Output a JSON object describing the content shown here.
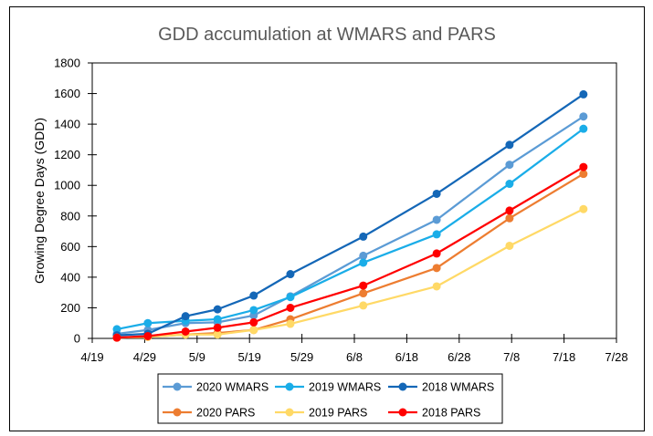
{
  "chart_data": {
    "type": "line",
    "title": "GDD accumulation at WMARS and PARS",
    "xlabel": "",
    "ylabel": "Growing Degree Days (GDD)",
    "ylim": [
      0,
      1800
    ],
    "y_ticks": [
      0,
      200,
      400,
      600,
      800,
      1000,
      1200,
      1400,
      1600,
      1800
    ],
    "x_tick_labels": [
      "4/19",
      "4/29",
      "5/9",
      "5/19",
      "5/29",
      "6/8",
      "6/18",
      "6/28",
      "7/8",
      "7/18",
      "7/28"
    ],
    "x_range_days": [
      0,
      100
    ],
    "x_origin_label": "4/19",
    "x_days": [
      4.7,
      10.6,
      17.8,
      23.9,
      30.8,
      37.8,
      51.7,
      65.7,
      79.6,
      93.7
    ],
    "grid": false,
    "legend_position": "bottom",
    "series": [
      {
        "name": "2020 WMARS",
        "color": "#5B9BD5",
        "values": [
          30,
          55,
          100,
          105,
          150,
          275,
          540,
          775,
          1135,
          1450
        ]
      },
      {
        "name": "2019 WMARS",
        "color": "#1AADE8",
        "values": [
          60,
          100,
          115,
          125,
          185,
          270,
          495,
          680,
          1010,
          1370
        ]
      },
      {
        "name": "2018 WMARS",
        "color": "#1467B7",
        "values": [
          20,
          30,
          145,
          190,
          280,
          420,
          665,
          945,
          1265,
          1595
        ]
      },
      {
        "name": "2020 PARS",
        "color": "#ED7D31",
        "values": [
          5,
          10,
          25,
          35,
          55,
          125,
          295,
          460,
          785,
          1075
        ]
      },
      {
        "name": "2019 PARS",
        "color": "#FFD966",
        "values": [
          5,
          10,
          25,
          25,
          55,
          95,
          215,
          340,
          605,
          845
        ]
      },
      {
        "name": "2018 PARS",
        "color": "#FF0000",
        "values": [
          5,
          15,
          45,
          70,
          105,
          200,
          345,
          555,
          835,
          1120
        ]
      }
    ]
  }
}
